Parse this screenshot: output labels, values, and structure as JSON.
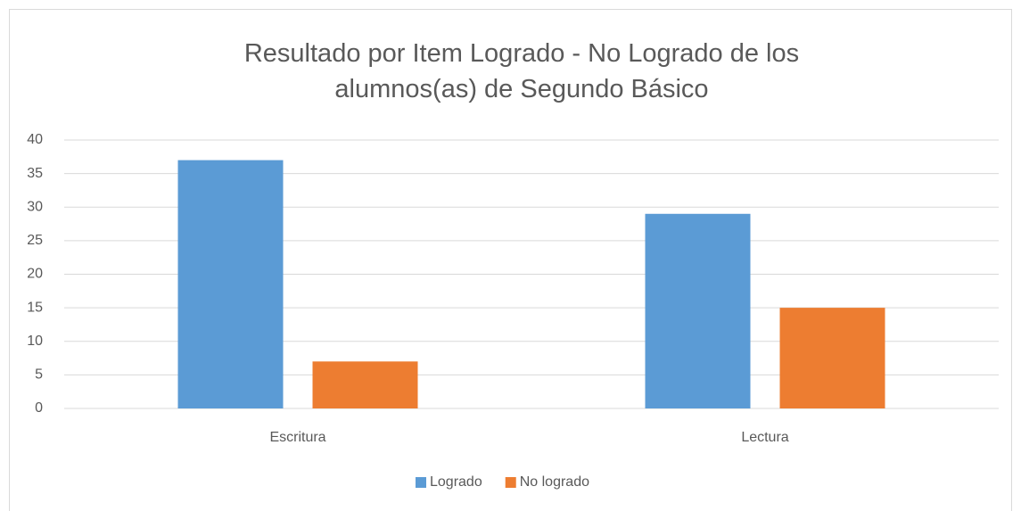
{
  "chart_data": {
    "type": "bar",
    "title": "Resultado por Item Logrado - No Logrado de los alumnos(as) de Segundo Básico",
    "categories": [
      "Escritura",
      "Lectura"
    ],
    "series": [
      {
        "name": "Logrado",
        "color": "#5b9bd5",
        "values": [
          37,
          29
        ]
      },
      {
        "name": "No logrado",
        "color": "#ed7d31",
        "values": [
          7,
          15
        ]
      }
    ],
    "ylim": [
      0,
      40
    ],
    "yticks": [
      0,
      5,
      10,
      15,
      20,
      25,
      30,
      35,
      40
    ],
    "grid": true,
    "legend": "bottom"
  }
}
